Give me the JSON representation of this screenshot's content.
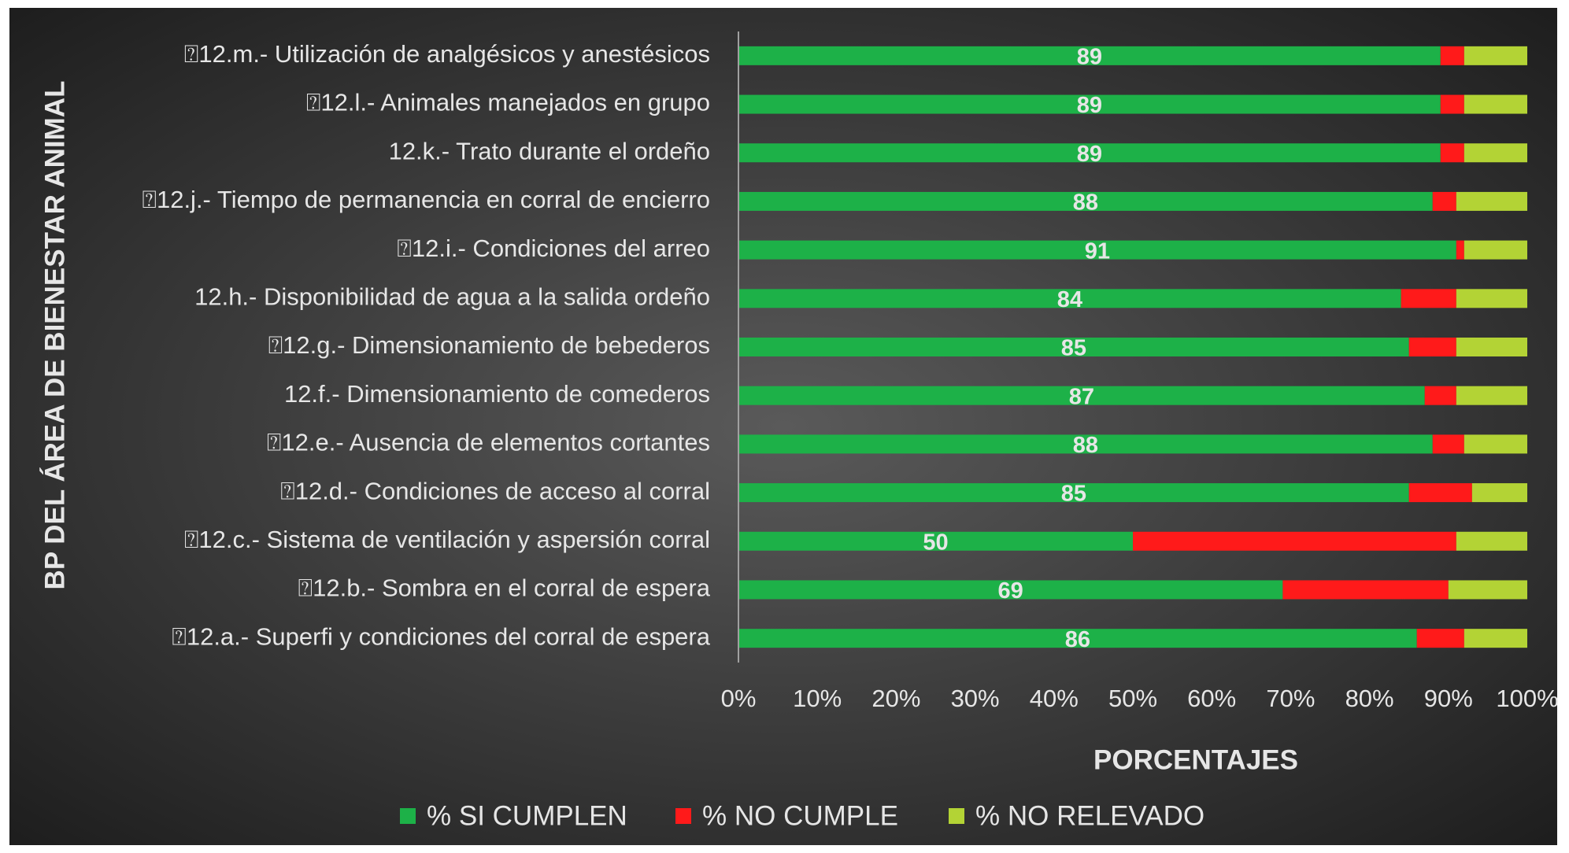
{
  "chart_data": {
    "type": "stacked_barh",
    "xlabel": "PORCENTAJES",
    "ylabel": "BP DEL ÁREA DE BIENESTAR ANIMAL",
    "categories": [
      "⍰12.a.- Superfi y condiciones del corral de espera",
      "⍰12.b.- Sombra en el corral de espera",
      "⍰12.c.- Sistema de ventilación y aspersión corral",
      "⍰12.d.- Condiciones de acceso al corral",
      "⍰12.e.- Ausencia de elementos cortantes",
      "12.f.- Dimensionamiento de comederos",
      "⍰12.g.- Dimensionamiento de bebederos",
      "12.h.- Disponibilidad de agua a la salida ordeño",
      "⍰12.i.- Condiciones del arreo",
      "⍰12.j.- Tiempo de permanencia en corral de encierro",
      "12.k.- Trato durante el ordeño",
      "⍰12.l.- Animales manejados en grupo",
      "⍰12.m.- Utilización de analgésicos y anestésicos"
    ],
    "series": [
      {
        "name": "% SI CUMPLEN",
        "color": "#1db148",
        "values": [
          86,
          69,
          50,
          85,
          88,
          87,
          85,
          84,
          91,
          88,
          89,
          89,
          89
        ],
        "data_labels": true
      },
      {
        "name": "% NO CUMPLE",
        "color": "#ff1a1a",
        "values": [
          6,
          21,
          41,
          8,
          4,
          4,
          6,
          7,
          1,
          3,
          3,
          3,
          3
        ]
      },
      {
        "name": "% NO RELEVADO",
        "color": "#b3d335",
        "values": [
          8,
          10,
          9,
          7,
          8,
          9,
          9,
          9,
          8,
          9,
          8,
          8,
          8
        ]
      }
    ],
    "xlim": [
      0,
      100
    ],
    "xticks": [
      {
        "value": 0,
        "label": "0%"
      },
      {
        "value": 10,
        "label": "10%"
      },
      {
        "value": 20,
        "label": "20%"
      },
      {
        "value": 30,
        "label": "30%"
      },
      {
        "value": 40,
        "label": "40%"
      },
      {
        "value": 50,
        "label": "50%"
      },
      {
        "value": 60,
        "label": "60%"
      },
      {
        "value": 70,
        "label": "70%"
      },
      {
        "value": 80,
        "label": "80%"
      },
      {
        "value": 90,
        "label": "90%"
      },
      {
        "value": 100,
        "label": "100%"
      }
    ],
    "legend": "bottom"
  }
}
